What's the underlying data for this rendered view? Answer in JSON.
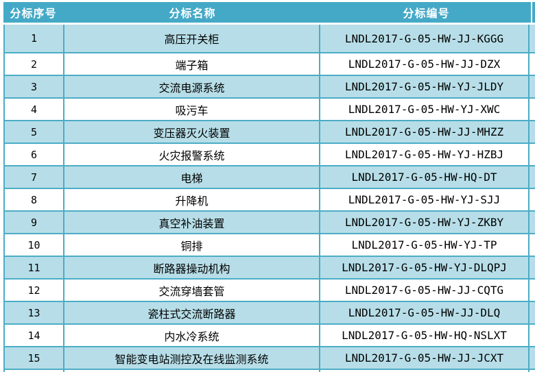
{
  "table": {
    "colors": {
      "header_bg": "#44A9C7",
      "border": "#4BACC6",
      "row_alt_bg": "#B7DEE8",
      "row_bg": "#FFFFFF",
      "header_text": "#FFFFFF",
      "cell_text": "#000000"
    },
    "columns": [
      {
        "label": "分标序号"
      },
      {
        "label": "分标名称"
      },
      {
        "label": "分标编号"
      }
    ],
    "rows": [
      {
        "seq": "1",
        "name": "高压开关柜",
        "code": "LNDL2017-G-05-HW-JJ-KGGG"
      },
      {
        "seq": "2",
        "name": "端子箱",
        "code": "LNDL2017-G-05-HW-JJ-DZX"
      },
      {
        "seq": "3",
        "name": "交流电源系统",
        "code": "LNDL2017-G-05-HW-YJ-JLDY"
      },
      {
        "seq": "4",
        "name": "吸污车",
        "code": "LNDL2017-G-05-HW-YJ-XWC"
      },
      {
        "seq": "5",
        "name": "变压器灭火装置",
        "code": "LNDL2017-G-05-HW-JJ-MHZZ"
      },
      {
        "seq": "6",
        "name": "火灾报警系统",
        "code": "LNDL2017-G-05-HW-YJ-HZBJ"
      },
      {
        "seq": "7",
        "name": "电梯",
        "code": "LNDL2017-G-05-HW-HQ-DT"
      },
      {
        "seq": "8",
        "name": "升降机",
        "code": "LNDL2017-G-05-HW-YJ-SJJ"
      },
      {
        "seq": "9",
        "name": "真空补油装置",
        "code": "LNDL2017-G-05-HW-YJ-ZKBY"
      },
      {
        "seq": "10",
        "name": "铜排",
        "code": "LNDL2017-G-05-HW-YJ-TP"
      },
      {
        "seq": "11",
        "name": "断路器操动机构",
        "code": "LNDL2017-G-05-HW-YJ-DLQPJ"
      },
      {
        "seq": "12",
        "name": "交流穿墙套管",
        "code": "LNDL2017-G-05-HW-JJ-CQTG"
      },
      {
        "seq": "13",
        "name": "瓷柱式交流断路器",
        "code": "LNDL2017-G-05-HW-JJ-DLQ"
      },
      {
        "seq": "14",
        "name": "内水冷系统",
        "code": "LNDL2017-G-05-HW-HQ-NSLXT"
      },
      {
        "seq": "15",
        "name": "智能变电站测控及在线监测系统",
        "code": "LNDL2017-G-05-HW-JJ-JCXT"
      }
    ]
  }
}
